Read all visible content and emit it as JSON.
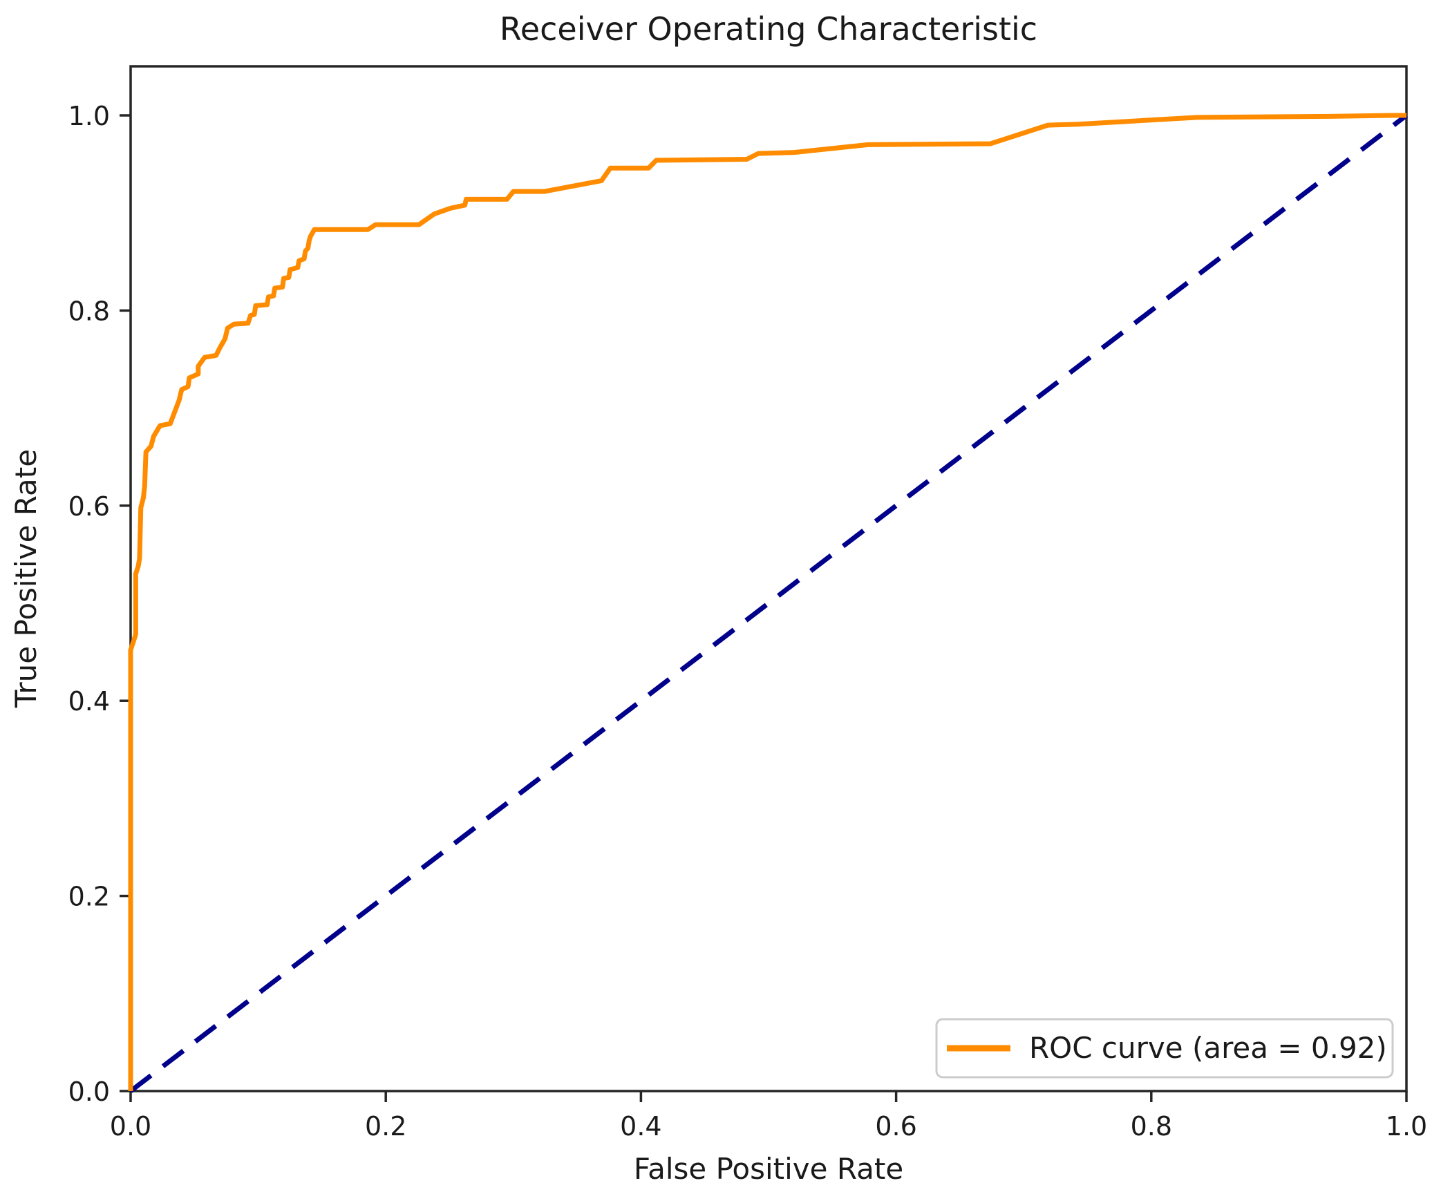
{
  "figure": {
    "title": "Receiver Operating Characteristic",
    "xlabel": "False Positive Rate",
    "ylabel": "True Positive Rate",
    "legend": {
      "label": "ROC curve (area = 0.92)",
      "position": "lower right"
    },
    "colors": {
      "roc_curve": "#FF8C00",
      "chance_line": "#00008B",
      "axis": "#262626",
      "text": "#1a1a1a",
      "legend_border": "#cccccc",
      "background": "#ffffff"
    }
  },
  "chart_data": {
    "type": "line",
    "title": "Receiver Operating Characteristic",
    "xlabel": "False Positive Rate",
    "ylabel": "True Positive Rate",
    "xlim": [
      0.0,
      1.0
    ],
    "ylim": [
      0.0,
      1.05
    ],
    "xticks": [
      0.0,
      0.2,
      0.4,
      0.6,
      0.8,
      1.0
    ],
    "yticks": [
      0.0,
      0.2,
      0.4,
      0.6,
      0.8,
      1.0
    ],
    "tick_decimals": 1,
    "grid": false,
    "legend_position": "lower right",
    "auc": 0.92,
    "series": [
      {
        "name": "ROC curve (area = 0.92)",
        "color": "#FF8C00",
        "style": "solid",
        "line_width": 7,
        "points": [
          [
            0.0,
            0.0
          ],
          [
            0.0,
            0.452
          ],
          [
            0.004,
            0.468
          ],
          [
            0.004,
            0.53
          ],
          [
            0.006,
            0.538
          ],
          [
            0.007,
            0.546
          ],
          [
            0.008,
            0.598
          ],
          [
            0.01,
            0.608
          ],
          [
            0.011,
            0.62
          ],
          [
            0.012,
            0.655
          ],
          [
            0.016,
            0.661
          ],
          [
            0.018,
            0.671
          ],
          [
            0.023,
            0.682
          ],
          [
            0.031,
            0.684
          ],
          [
            0.038,
            0.708
          ],
          [
            0.04,
            0.719
          ],
          [
            0.045,
            0.722
          ],
          [
            0.046,
            0.731
          ],
          [
            0.053,
            0.735
          ],
          [
            0.053,
            0.743
          ],
          [
            0.058,
            0.752
          ],
          [
            0.067,
            0.754
          ],
          [
            0.07,
            0.762
          ],
          [
            0.074,
            0.771
          ],
          [
            0.076,
            0.782
          ],
          [
            0.081,
            0.786
          ],
          [
            0.092,
            0.787
          ],
          [
            0.094,
            0.795
          ],
          [
            0.097,
            0.796
          ],
          [
            0.098,
            0.805
          ],
          [
            0.107,
            0.806
          ],
          [
            0.108,
            0.814
          ],
          [
            0.112,
            0.815
          ],
          [
            0.113,
            0.823
          ],
          [
            0.119,
            0.824
          ],
          [
            0.12,
            0.833
          ],
          [
            0.124,
            0.834
          ],
          [
            0.125,
            0.842
          ],
          [
            0.131,
            0.844
          ],
          [
            0.132,
            0.851
          ],
          [
            0.136,
            0.853
          ],
          [
            0.137,
            0.861
          ],
          [
            0.139,
            0.864
          ],
          [
            0.14,
            0.872
          ],
          [
            0.141,
            0.876
          ],
          [
            0.144,
            0.883
          ],
          [
            0.186,
            0.883
          ],
          [
            0.192,
            0.888
          ],
          [
            0.226,
            0.888
          ],
          [
            0.238,
            0.899
          ],
          [
            0.251,
            0.905
          ],
          [
            0.262,
            0.908
          ],
          [
            0.263,
            0.914
          ],
          [
            0.295,
            0.914
          ],
          [
            0.3,
            0.922
          ],
          [
            0.324,
            0.922
          ],
          [
            0.369,
            0.933
          ],
          [
            0.376,
            0.946
          ],
          [
            0.406,
            0.946
          ],
          [
            0.412,
            0.954
          ],
          [
            0.483,
            0.955
          ],
          [
            0.492,
            0.961
          ],
          [
            0.52,
            0.962
          ],
          [
            0.578,
            0.97
          ],
          [
            0.674,
            0.971
          ],
          [
            0.719,
            0.99
          ],
          [
            0.743,
            0.991
          ],
          [
            0.836,
            0.998
          ],
          [
            0.94,
            0.999
          ],
          [
            0.99,
            1.0
          ],
          [
            1.0,
            1.0
          ]
        ]
      },
      {
        "name": "diagonal reference",
        "color": "#00008B",
        "style": "dashed",
        "line_width": 7,
        "points": [
          [
            0.0,
            0.0
          ],
          [
            1.0,
            1.0
          ]
        ]
      }
    ]
  }
}
